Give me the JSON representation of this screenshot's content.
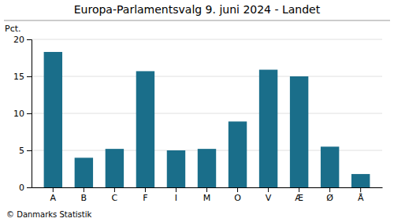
{
  "chart_data": {
    "type": "bar",
    "title": "Europa-Parlamentsvalg 9. juni 2024 - Landet",
    "ylabel": "Pct.",
    "annotations": [
      "© Danmarks Statistik"
    ],
    "categories": [
      "A",
      "B",
      "C",
      "F",
      "I",
      "M",
      "O",
      "V",
      "Æ",
      "Ø",
      "Å"
    ],
    "values": [
      18.3,
      4.0,
      5.2,
      15.7,
      5.0,
      5.2,
      8.9,
      15.9,
      15.0,
      5.5,
      1.8
    ],
    "color": "#1a6e8a",
    "ylim": [
      0,
      20
    ],
    "yticks": [
      0,
      5,
      10,
      15,
      20
    ],
    "grid": true
  }
}
